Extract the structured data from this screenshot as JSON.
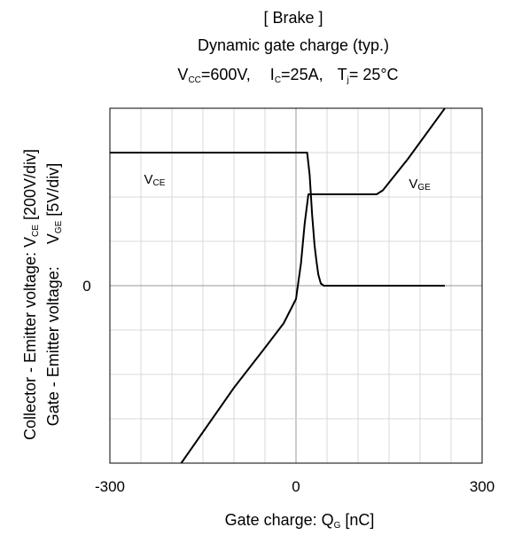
{
  "chart_data": {
    "type": "line",
    "title": "[ Brake ]",
    "subtitle": "Dynamic gate charge  (typ.)",
    "conditions": {
      "vcc": {
        "label": "V",
        "sub": "CC",
        "value": "=600V,"
      },
      "ic": {
        "label": "I",
        "sub": "C",
        "value": "=25A,"
      },
      "tj": {
        "label": "T",
        "sub": "j",
        "value": "= 25°C"
      }
    },
    "xlabel": {
      "text": "Gate charge: Q",
      "sub": "G",
      "unit": " [nC]"
    },
    "ylabel_outer": {
      "text": "Collector - Emitter voltage: V",
      "sub": "CE",
      "unit": " [200V/div]"
    },
    "ylabel_inner": {
      "text": "Gate - Emitter voltage:     V",
      "sub": "GE",
      "unit": " [5V/div]"
    },
    "xlim": [
      -300,
      300
    ],
    "ylim": [
      -4,
      4
    ],
    "x_ticks": [
      {
        "value": -300,
        "label": "-300"
      },
      {
        "value": 0,
        "label": "0"
      },
      {
        "value": 300,
        "label": "300"
      }
    ],
    "y_ticks": [
      {
        "value": 0,
        "label": "0"
      }
    ],
    "x_grid": [
      -250,
      -200,
      -150,
      -100,
      -50,
      0,
      50,
      100,
      150,
      200,
      250
    ],
    "y_grid": [
      -3,
      -2,
      -1,
      0,
      1,
      2,
      3
    ],
    "grid": true,
    "series": [
      {
        "name": "VCE",
        "label": {
          "text": "V",
          "sub": "CE",
          "x": -245,
          "y": 2.3
        },
        "x": [
          -300,
          18,
          22,
          26,
          30,
          33,
          36,
          40,
          45,
          60,
          120,
          240
        ],
        "y": [
          3.0,
          3.0,
          2.5,
          1.6,
          0.9,
          0.55,
          0.25,
          0.05,
          0.0,
          0.0,
          0.0,
          0.0
        ]
      },
      {
        "name": "VGE",
        "label": {
          "text": "V",
          "sub": "GE",
          "x": 182,
          "y": 2.2
        },
        "x": [
          -185,
          -150,
          -100,
          -50,
          -20,
          0,
          8,
          14,
          20,
          25,
          130,
          140,
          180,
          240
        ],
        "y": [
          -4.0,
          -3.3,
          -2.3,
          -1.4,
          -0.85,
          -0.3,
          0.5,
          1.4,
          2.06,
          2.06,
          2.06,
          2.15,
          2.85,
          4.0
        ]
      }
    ]
  }
}
